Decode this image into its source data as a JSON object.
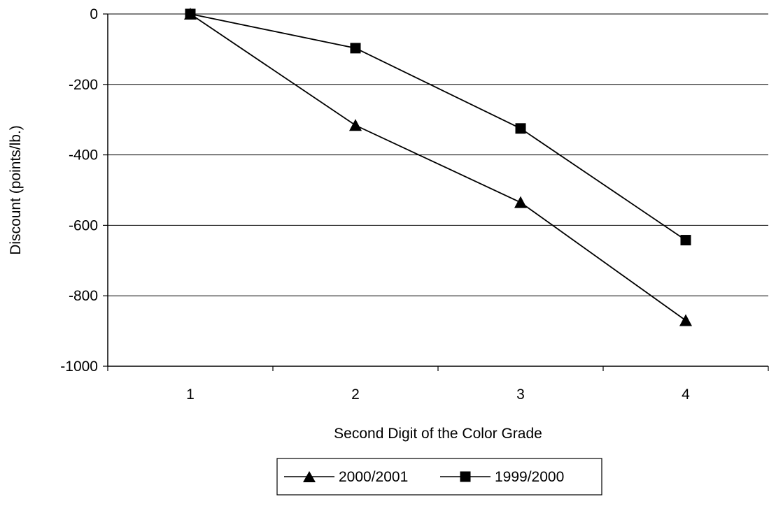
{
  "chart_data": {
    "type": "line",
    "title": "",
    "xlabel": "Second Digit of the Color Grade",
    "ylabel": "Discount (points/lb.)",
    "x": [
      "1",
      "2",
      "3",
      "4"
    ],
    "ylim": [
      -1000,
      0
    ],
    "yticks": [
      "0",
      "-200",
      "-400",
      "-600",
      "-800",
      "-1000"
    ],
    "grid": "horizontal",
    "legend_position": "bottom",
    "series": [
      {
        "name": "2000/2001",
        "marker": "triangle",
        "color": "#000000",
        "values": [
          0,
          -316,
          -535,
          -870
        ]
      },
      {
        "name": "1999/2000",
        "marker": "square",
        "color": "#000000",
        "values": [
          0,
          -97,
          -325,
          -642
        ]
      }
    ]
  }
}
